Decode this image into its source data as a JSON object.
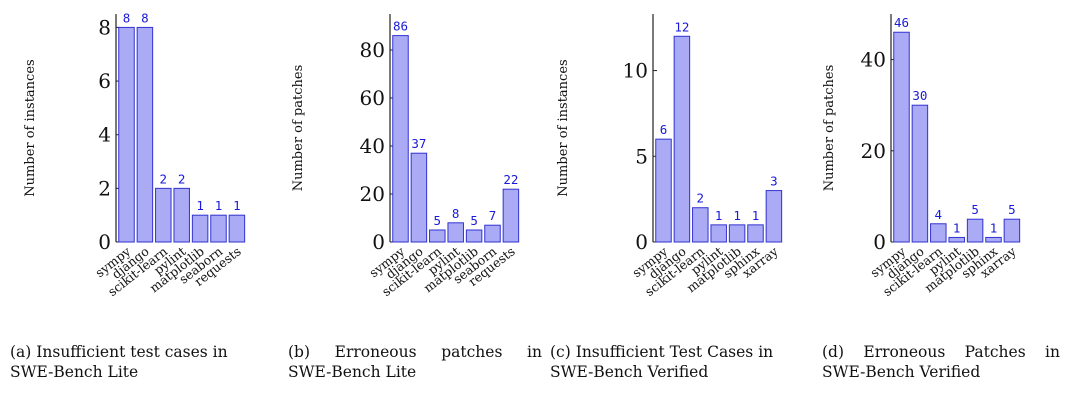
{
  "bar_color": "#aaaaf5",
  "bar_stroke": "#3232d2",
  "label_color": "#1a1adb",
  "chart_data": [
    {
      "type": "bar",
      "ylabel": "Number of instances",
      "categories": [
        "sympy",
        "django",
        "scikit-learn",
        "pylint",
        "matplotlib",
        "seaborn",
        "requests"
      ],
      "values": [
        8,
        8,
        2,
        2,
        1,
        1,
        1
      ],
      "data_labels": [
        "8",
        "8",
        "2",
        "2",
        "1",
        "1",
        "1"
      ],
      "yticks": [
        0,
        2,
        4,
        6,
        8
      ],
      "ytick_labels": [
        "0",
        "2",
        "4",
        "6",
        "8"
      ],
      "ylim": [
        0,
        8.5
      ],
      "caption_line1": "(a) Insufficient test cases in",
      "caption_line2": "SWE-Bench Lite"
    },
    {
      "type": "bar",
      "ylabel": "Number of patches",
      "categories": [
        "sympy",
        "django",
        "scikit-learn",
        "pylint",
        "matplotlib",
        "seaborn",
        "requests"
      ],
      "values": [
        86,
        37,
        5,
        8,
        5,
        7,
        22
      ],
      "data_labels": [
        "86",
        "37",
        "5",
        "8",
        "5",
        "7",
        "22"
      ],
      "yticks": [
        0,
        20,
        40,
        60,
        80
      ],
      "ytick_labels": [
        "0",
        "20",
        "40",
        "60",
        "80"
      ],
      "ylim": [
        0,
        95
      ],
      "caption_line1": "(b) Erroneous patches in",
      "caption_line2": "SWE-Bench Lite"
    },
    {
      "type": "bar",
      "ylabel": "Number of instances",
      "categories": [
        "sympy",
        "django",
        "scikit-learn",
        "pylint",
        "matplotlib",
        "sphinx",
        "xarray"
      ],
      "values": [
        6,
        12,
        2,
        1,
        1,
        1,
        3
      ],
      "data_labels": [
        "6",
        "12",
        "2",
        "1",
        "1",
        "1",
        "3"
      ],
      "yticks": [
        0,
        5,
        10
      ],
      "ytick_labels": [
        "0",
        "5",
        "10"
      ],
      "ylim": [
        0,
        13.3
      ],
      "caption_line1": "(c) Insufficient Test Cases in",
      "caption_line2": "SWE-Bench Verified"
    },
    {
      "type": "bar",
      "ylabel": "Number of patches",
      "categories": [
        "sympy",
        "django",
        "scikit-learn",
        "pylint",
        "matplotlib",
        "sphinx",
        "xarray"
      ],
      "values": [
        46,
        30,
        4,
        1,
        5,
        1,
        5
      ],
      "data_labels": [
        "46",
        "30",
        "4",
        "1",
        "5",
        "1",
        "5"
      ],
      "yticks": [
        0,
        20,
        40
      ],
      "ytick_labels": [
        "0",
        "20",
        "40"
      ],
      "ylim": [
        0,
        50
      ],
      "caption_line1": "(d) Erroneous Patches in",
      "caption_line2": "SWE-Bench Verified"
    }
  ]
}
